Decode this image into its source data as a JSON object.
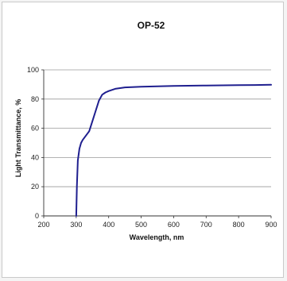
{
  "chart_data": {
    "type": "line",
    "title": "OP-52",
    "xlabel": "Wavelength, nm",
    "ylabel": "Light Transmittance, %",
    "xlim": [
      200,
      900
    ],
    "ylim": [
      0,
      100
    ],
    "x_ticks": [
      200,
      300,
      400,
      500,
      600,
      700,
      800,
      900
    ],
    "y_ticks": [
      0,
      20,
      40,
      60,
      80,
      100
    ],
    "grid": "horizontal",
    "legend": "none",
    "series": [
      {
        "color": "#1f1f8f",
        "x": [
          300,
          302,
          305,
          310,
          315,
          320,
          330,
          340,
          350,
          360,
          370,
          380,
          390,
          400,
          420,
          450,
          500,
          600,
          700,
          800,
          850,
          900
        ],
        "y": [
          0,
          20,
          38,
          46,
          50,
          52,
          55,
          58,
          65,
          72,
          79,
          83,
          84.5,
          85.5,
          87,
          88,
          88.5,
          89,
          89.3,
          89.5,
          89.6,
          89.8
        ]
      }
    ]
  }
}
